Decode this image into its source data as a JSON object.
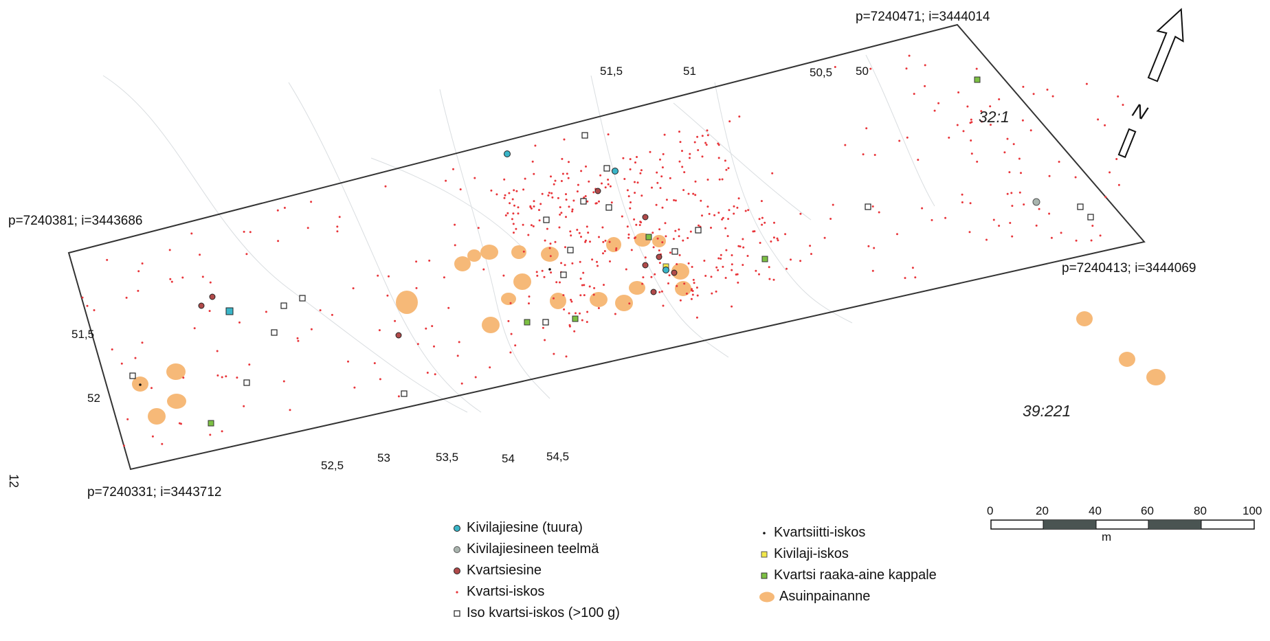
{
  "corners": {
    "top_right": "p=7240471; i=3444014",
    "left": "p=7240381; i=3443686",
    "right": "p=7240413; i=3444069",
    "bottom_left": "p=7240331; i=3443712"
  },
  "contours": {
    "top": [
      "51,5",
      "51",
      "50,5",
      "50"
    ],
    "bottom": [
      "52,5",
      "53",
      "53,5",
      "54",
      "54,5"
    ],
    "left": [
      "51,5",
      "52"
    ]
  },
  "site_labels": [
    "32:1",
    "39:221"
  ],
  "north_label": "N",
  "page_number": "12",
  "scale_bar": {
    "ticks": [
      "0",
      "20",
      "40",
      "60",
      "80",
      "100"
    ],
    "unit": "m"
  },
  "legend": {
    "left": [
      {
        "symbol": "teal-dot",
        "label": "Kivilajiesine (tuura)"
      },
      {
        "symbol": "grey-dot",
        "label": "Kivilajiesineen teelmä"
      },
      {
        "symbol": "brown-dot",
        "label": "Kvartsiesine"
      },
      {
        "symbol": "red-dot",
        "label": "Kvartsi-iskos"
      },
      {
        "symbol": "white-square",
        "label": "Iso kvartsi-iskos (>100 g)"
      }
    ],
    "right": [
      {
        "symbol": "black-dot",
        "label": "Kvartsiitti-iskos"
      },
      {
        "symbol": "yellow-square",
        "label": "Kivilaji-iskos"
      },
      {
        "symbol": "green-square",
        "label": "Kvartsi raaka-aine kappale"
      },
      {
        "symbol": "orange-blob",
        "label": "Asuinpainanne"
      }
    ]
  },
  "colors": {
    "kvartsi_iskos": "#e8353a",
    "asuinpainanne": "#f6b978",
    "kivilajiesine": "#3ab5c8",
    "kvartsiesine": "#b04a4a",
    "raaka_aine": "#7cc043",
    "kivilaji_iskos": "#f2e84a",
    "teelma": "#a9b4ae"
  }
}
